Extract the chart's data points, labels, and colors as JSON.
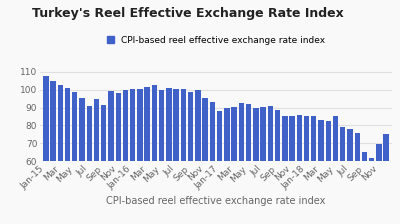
{
  "title": "Turkey's Reel Effective Exchange Rate Index",
  "xlabel": "CPI-based reel effective exchange rate index",
  "legend_label": "CPI-based reel effective exchange rate index",
  "bar_color": "#4062C8",
  "background_color": "#f9f9f9",
  "grid_color": "#e0e0e0",
  "ylim": [
    60,
    115
  ],
  "yticks": [
    60,
    70,
    80,
    90,
    100,
    110
  ],
  "values": [
    107.5,
    104.8,
    102.5,
    100.8,
    98.5,
    95.5,
    91.0,
    94.5,
    91.5,
    99.0,
    98.0,
    99.5,
    100.5,
    100.5,
    101.5,
    102.5,
    100.0,
    101.0,
    100.5,
    100.5,
    98.5,
    99.5,
    95.5,
    93.0,
    88.0,
    89.5,
    90.5,
    92.5,
    92.0,
    90.0,
    90.5,
    91.0,
    88.5,
    85.0,
    85.5,
    86.0,
    85.0,
    85.0,
    83.0,
    82.5,
    85.0,
    79.0,
    78.0,
    76.0,
    65.0,
    62.0,
    69.5,
    75.0
  ],
  "x_label_indices": [
    0,
    2,
    4,
    6,
    8,
    10,
    12,
    14,
    16,
    18,
    20,
    22,
    24,
    26,
    28,
    30,
    32,
    34,
    36,
    38,
    40,
    42,
    44,
    46
  ],
  "x_label_texts": [
    "Jan-15",
    "Mar",
    "May",
    "Jul",
    "Sep",
    "Nov",
    "Jan-16",
    "Mar",
    "May",
    "Jul",
    "Sep",
    "Nov",
    "Jan-17",
    "Mar",
    "May",
    "Jul",
    "Sep",
    "Nov",
    "Jan-18",
    "Mar",
    "May",
    "Jul",
    "Sep",
    "Nov"
  ],
  "title_fontsize": 9,
  "legend_fontsize": 6.5,
  "tick_fontsize": 6.5,
  "xlabel_fontsize": 7
}
